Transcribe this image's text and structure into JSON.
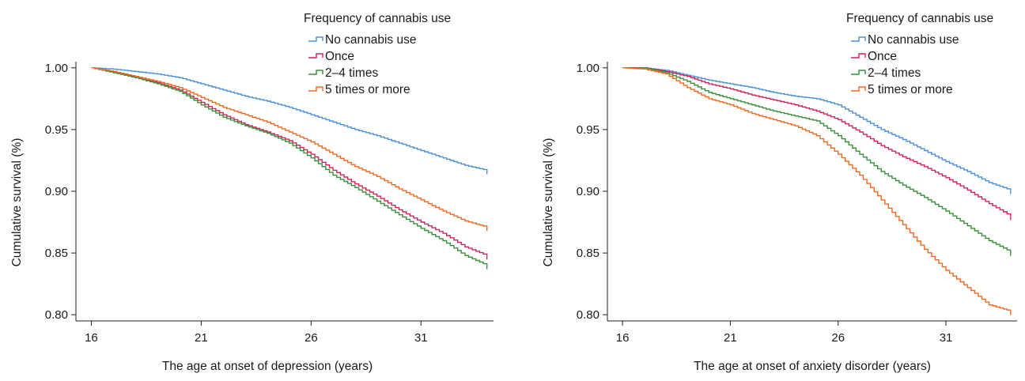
{
  "chart_data": [
    {
      "type": "line",
      "title": "",
      "xlabel": "The age at onset of depression (years)",
      "ylabel": "Cumulative survival (%)",
      "xlim": [
        15.3,
        34.3
      ],
      "ylim": [
        0.795,
        1.005
      ],
      "xticks": [
        16,
        21,
        26,
        31
      ],
      "yticks": [
        0.8,
        0.85,
        0.9,
        0.95,
        1.0
      ],
      "ytick_labels": [
        "0.80",
        "0.85",
        "0.90",
        "0.95",
        "1.00"
      ],
      "legend_title": "Frequency of cannabis use",
      "legend_position": "top-right",
      "series": [
        {
          "name": "No cannabis use",
          "color": "#4a90d9",
          "x": [
            16,
            17,
            18,
            19,
            20,
            21,
            22,
            23,
            24,
            25,
            26,
            27,
            28,
            29,
            30,
            31,
            32,
            33,
            34
          ],
          "y": [
            1.0,
            0.999,
            0.997,
            0.995,
            0.992,
            0.987,
            0.982,
            0.977,
            0.973,
            0.968,
            0.962,
            0.956,
            0.95,
            0.945,
            0.939,
            0.933,
            0.927,
            0.921,
            0.917
          ]
        },
        {
          "name": "Once",
          "color": "#d0245a",
          "x": [
            16,
            17,
            18,
            19,
            20,
            21,
            22,
            23,
            24,
            25,
            26,
            27,
            28,
            29,
            30,
            31,
            32,
            33,
            34
          ],
          "y": [
            1.0,
            0.997,
            0.992,
            0.988,
            0.982,
            0.972,
            0.962,
            0.954,
            0.948,
            0.941,
            0.93,
            0.917,
            0.906,
            0.896,
            0.885,
            0.875,
            0.866,
            0.855,
            0.848
          ]
        },
        {
          "name": "2–4 times",
          "color": "#3a8f3a",
          "x": [
            16,
            17,
            18,
            19,
            20,
            21,
            22,
            23,
            24,
            25,
            26,
            27,
            28,
            29,
            30,
            31,
            32,
            33,
            34
          ],
          "y": [
            1.0,
            0.996,
            0.992,
            0.987,
            0.981,
            0.97,
            0.96,
            0.953,
            0.947,
            0.939,
            0.927,
            0.913,
            0.903,
            0.892,
            0.881,
            0.87,
            0.86,
            0.848,
            0.84
          ]
        },
        {
          "name": "5 times or more",
          "color": "#ef6a21",
          "x": [
            16,
            17,
            18,
            19,
            20,
            21,
            22,
            23,
            24,
            25,
            26,
            27,
            28,
            29,
            30,
            31,
            32,
            33,
            34
          ],
          "y": [
            1.0,
            0.997,
            0.993,
            0.989,
            0.984,
            0.976,
            0.968,
            0.962,
            0.956,
            0.948,
            0.94,
            0.93,
            0.92,
            0.912,
            0.902,
            0.893,
            0.884,
            0.876,
            0.871
          ]
        }
      ]
    },
    {
      "type": "line",
      "title": "",
      "xlabel": "The age at onset of anxiety disorder (years)",
      "ylabel": "Cumulative survival (%)",
      "xlim": [
        15.3,
        34.3
      ],
      "ylim": [
        0.795,
        1.005
      ],
      "xticks": [
        16,
        21,
        26,
        31
      ],
      "yticks": [
        0.8,
        0.85,
        0.9,
        0.95,
        1.0
      ],
      "ytick_labels": [
        "0.80",
        "0.85",
        "0.90",
        "0.95",
        "1.00"
      ],
      "legend_title": "Frequency of cannabis use",
      "legend_position": "top-right",
      "series": [
        {
          "name": "No cannabis use",
          "color": "#4a90d9",
          "x": [
            16,
            17,
            18,
            19,
            20,
            21,
            22,
            23,
            24,
            25,
            26,
            27,
            28,
            29,
            30,
            31,
            32,
            33,
            34
          ],
          "y": [
            1.0,
            1.0,
            0.998,
            0.994,
            0.99,
            0.987,
            0.984,
            0.98,
            0.977,
            0.975,
            0.97,
            0.96,
            0.95,
            0.942,
            0.933,
            0.924,
            0.916,
            0.907,
            0.901
          ]
        },
        {
          "name": "Once",
          "color": "#d0245a",
          "x": [
            16,
            17,
            18,
            19,
            20,
            21,
            22,
            23,
            24,
            25,
            26,
            27,
            28,
            29,
            30,
            31,
            32,
            33,
            34
          ],
          "y": [
            1.0,
            1.0,
            0.997,
            0.993,
            0.987,
            0.983,
            0.978,
            0.974,
            0.97,
            0.965,
            0.958,
            0.948,
            0.937,
            0.928,
            0.92,
            0.911,
            0.901,
            0.89,
            0.88
          ]
        },
        {
          "name": "2–4 times",
          "color": "#3a8f3a",
          "x": [
            16,
            17,
            18,
            19,
            20,
            21,
            22,
            23,
            24,
            25,
            26,
            27,
            28,
            29,
            30,
            31,
            32,
            33,
            34
          ],
          "y": [
            1.0,
            1.0,
            0.996,
            0.989,
            0.98,
            0.975,
            0.97,
            0.965,
            0.961,
            0.957,
            0.945,
            0.93,
            0.916,
            0.905,
            0.895,
            0.884,
            0.872,
            0.86,
            0.851
          ]
        },
        {
          "name": "5 times or more",
          "color": "#ef6a21",
          "x": [
            16,
            17,
            18,
            19,
            20,
            21,
            22,
            23,
            24,
            25,
            26,
            27,
            28,
            29,
            30,
            31,
            32,
            33,
            34
          ],
          "y": [
            1.0,
            0.999,
            0.995,
            0.984,
            0.975,
            0.97,
            0.963,
            0.958,
            0.953,
            0.945,
            0.93,
            0.913,
            0.893,
            0.873,
            0.853,
            0.836,
            0.822,
            0.808,
            0.803
          ]
        }
      ]
    }
  ]
}
